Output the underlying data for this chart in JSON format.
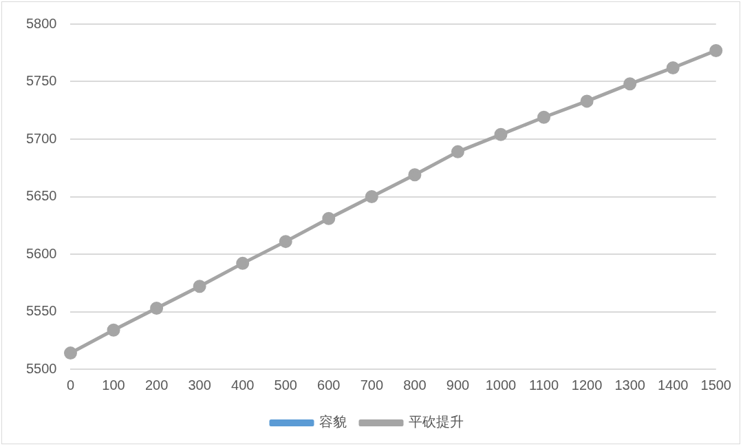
{
  "chart_data": {
    "type": "line",
    "categories": [
      "0",
      "100",
      "200",
      "300",
      "400",
      "500",
      "600",
      "700",
      "800",
      "900",
      "1000",
      "1100",
      "1200",
      "1300",
      "1400",
      "1500"
    ],
    "series": [
      {
        "name": "容貌",
        "color": "#5b9bd5",
        "values": [
          null,
          null,
          null,
          null,
          null,
          null,
          null,
          null,
          null,
          null,
          null,
          null,
          null,
          null,
          null,
          null
        ]
      },
      {
        "name": "平砍提升",
        "color": "#a5a5a5",
        "values": [
          5514,
          5534,
          5553,
          5572,
          5592,
          5611,
          5631,
          5650,
          5669,
          5689,
          5704,
          5719,
          5733,
          5748,
          5762,
          5777
        ]
      }
    ],
    "ylim": [
      5500,
      5800
    ],
    "yticks": [
      5500,
      5550,
      5600,
      5650,
      5700,
      5750,
      5800
    ],
    "grid": "y",
    "legend": "bottom",
    "marker": "circle",
    "line_style": "solid"
  }
}
